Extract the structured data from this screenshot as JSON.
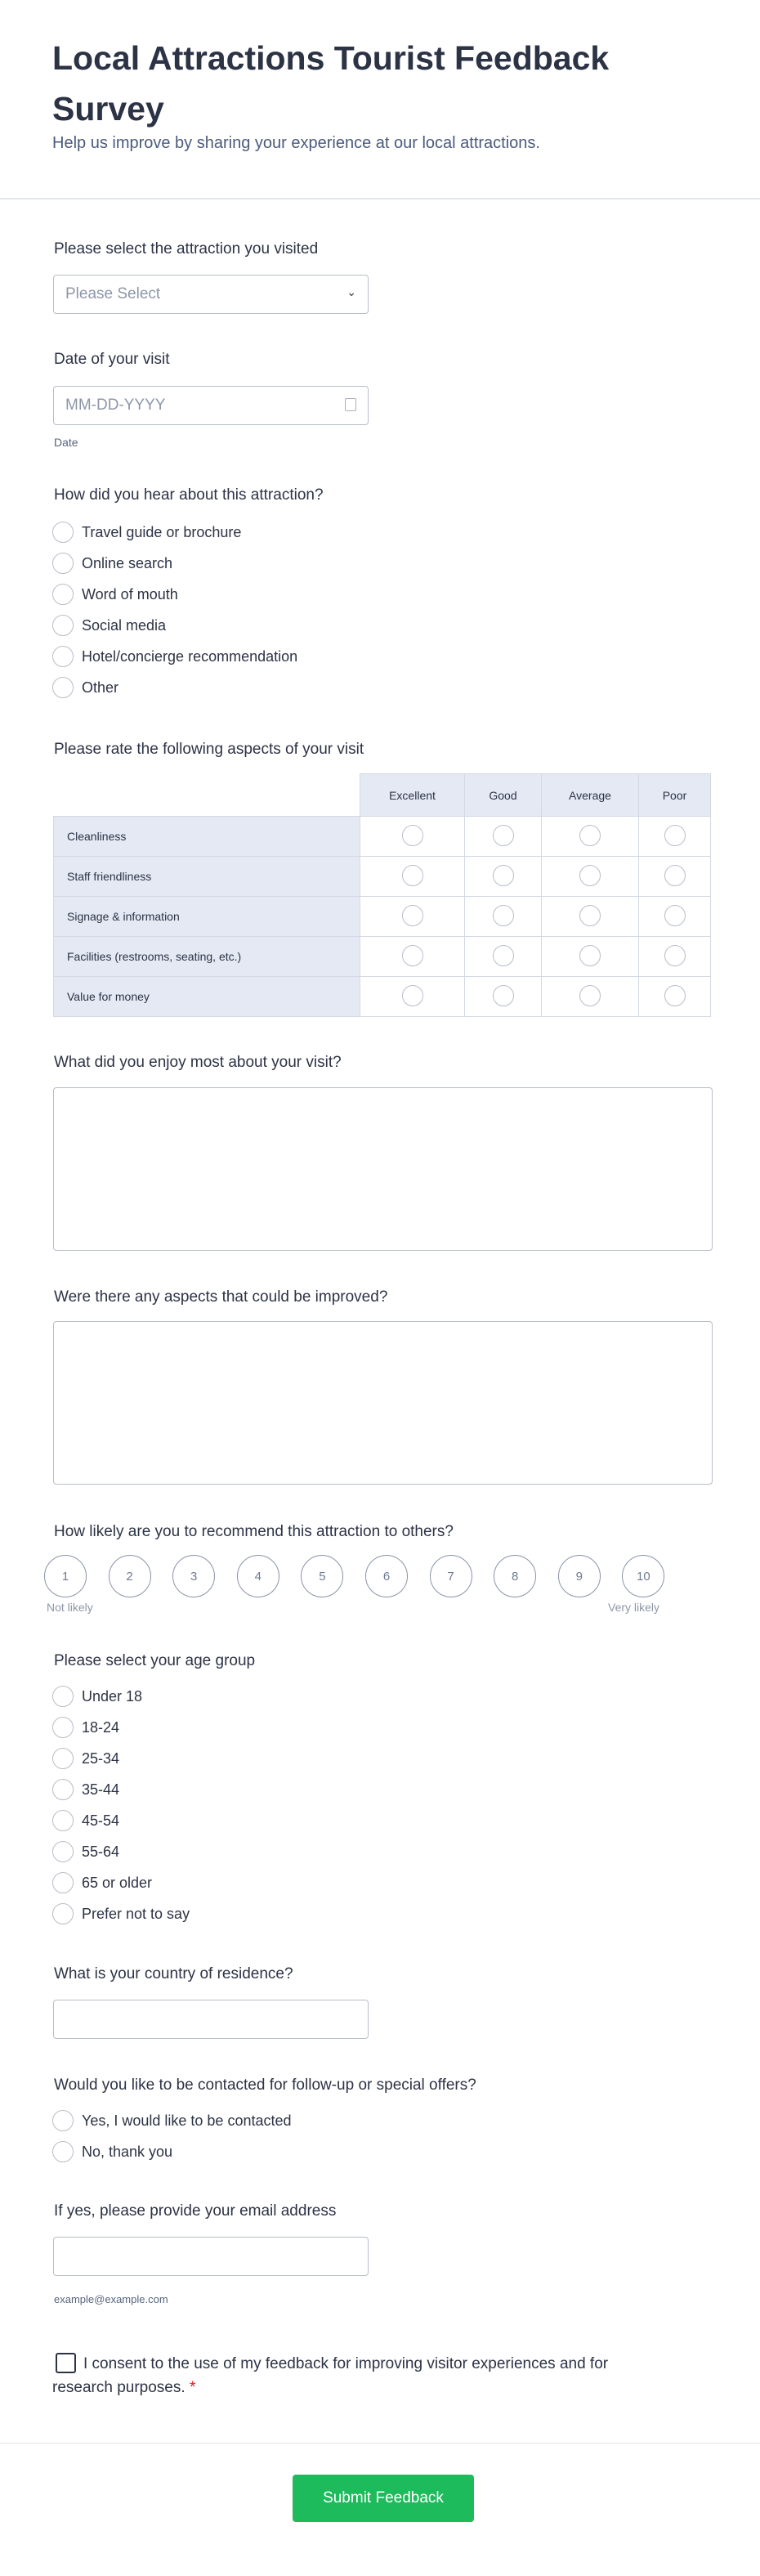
{
  "header": {
    "title": "Local Attractions Tourist Feedback Survey",
    "subtitle": "Help us improve by sharing your experience at our local attractions."
  },
  "attraction": {
    "label": "Please select the attraction you visited",
    "placeholder": "Please Select"
  },
  "date": {
    "label": "Date of your visit",
    "placeholder": "MM-DD-YYYY",
    "sublabel": "Date"
  },
  "source": {
    "label": "How did you hear about this attraction?",
    "options": [
      "Travel guide or brochure",
      "Online search",
      "Word of mouth",
      "Social media",
      "Hotel/concierge recommendation",
      "Other"
    ]
  },
  "matrix": {
    "label": "Please rate the following aspects of your visit",
    "columns": [
      "Excellent",
      "Good",
      "Average",
      "Poor"
    ],
    "rows": [
      "Cleanliness",
      "Staff friendliness",
      "Signage & information",
      "Facilities (restrooms, seating, etc.)",
      "Value for money"
    ]
  },
  "enjoy": {
    "label": "What did you enjoy most about your visit?"
  },
  "improve": {
    "label": "Were there any aspects that could be improved?"
  },
  "recommend": {
    "label": "How likely are you to recommend this attraction to others?",
    "options": [
      "1",
      "2",
      "3",
      "4",
      "5",
      "6",
      "7",
      "8",
      "9",
      "10"
    ],
    "low": "Not likely",
    "high": "Very likely"
  },
  "age": {
    "label": "Please select your age group",
    "options": [
      "Under 18",
      "18-24",
      "25-34",
      "35-44",
      "45-54",
      "55-64",
      "65 or older",
      "Prefer not to say"
    ]
  },
  "country": {
    "label": "What is your country of residence?"
  },
  "contact": {
    "label": "Would you like to be contacted for follow-up or special offers?",
    "options": [
      "Yes, I would like to be contacted",
      "No, thank you"
    ]
  },
  "email": {
    "label": "If yes, please provide your email address",
    "sublabel": "example@example.com"
  },
  "consent": {
    "text": "I consent to the use of my feedback for improving visitor experiences and for research purposes.",
    "required": "*"
  },
  "submit": {
    "label": "Submit Feedback",
    "color": "#1dbb5c"
  }
}
